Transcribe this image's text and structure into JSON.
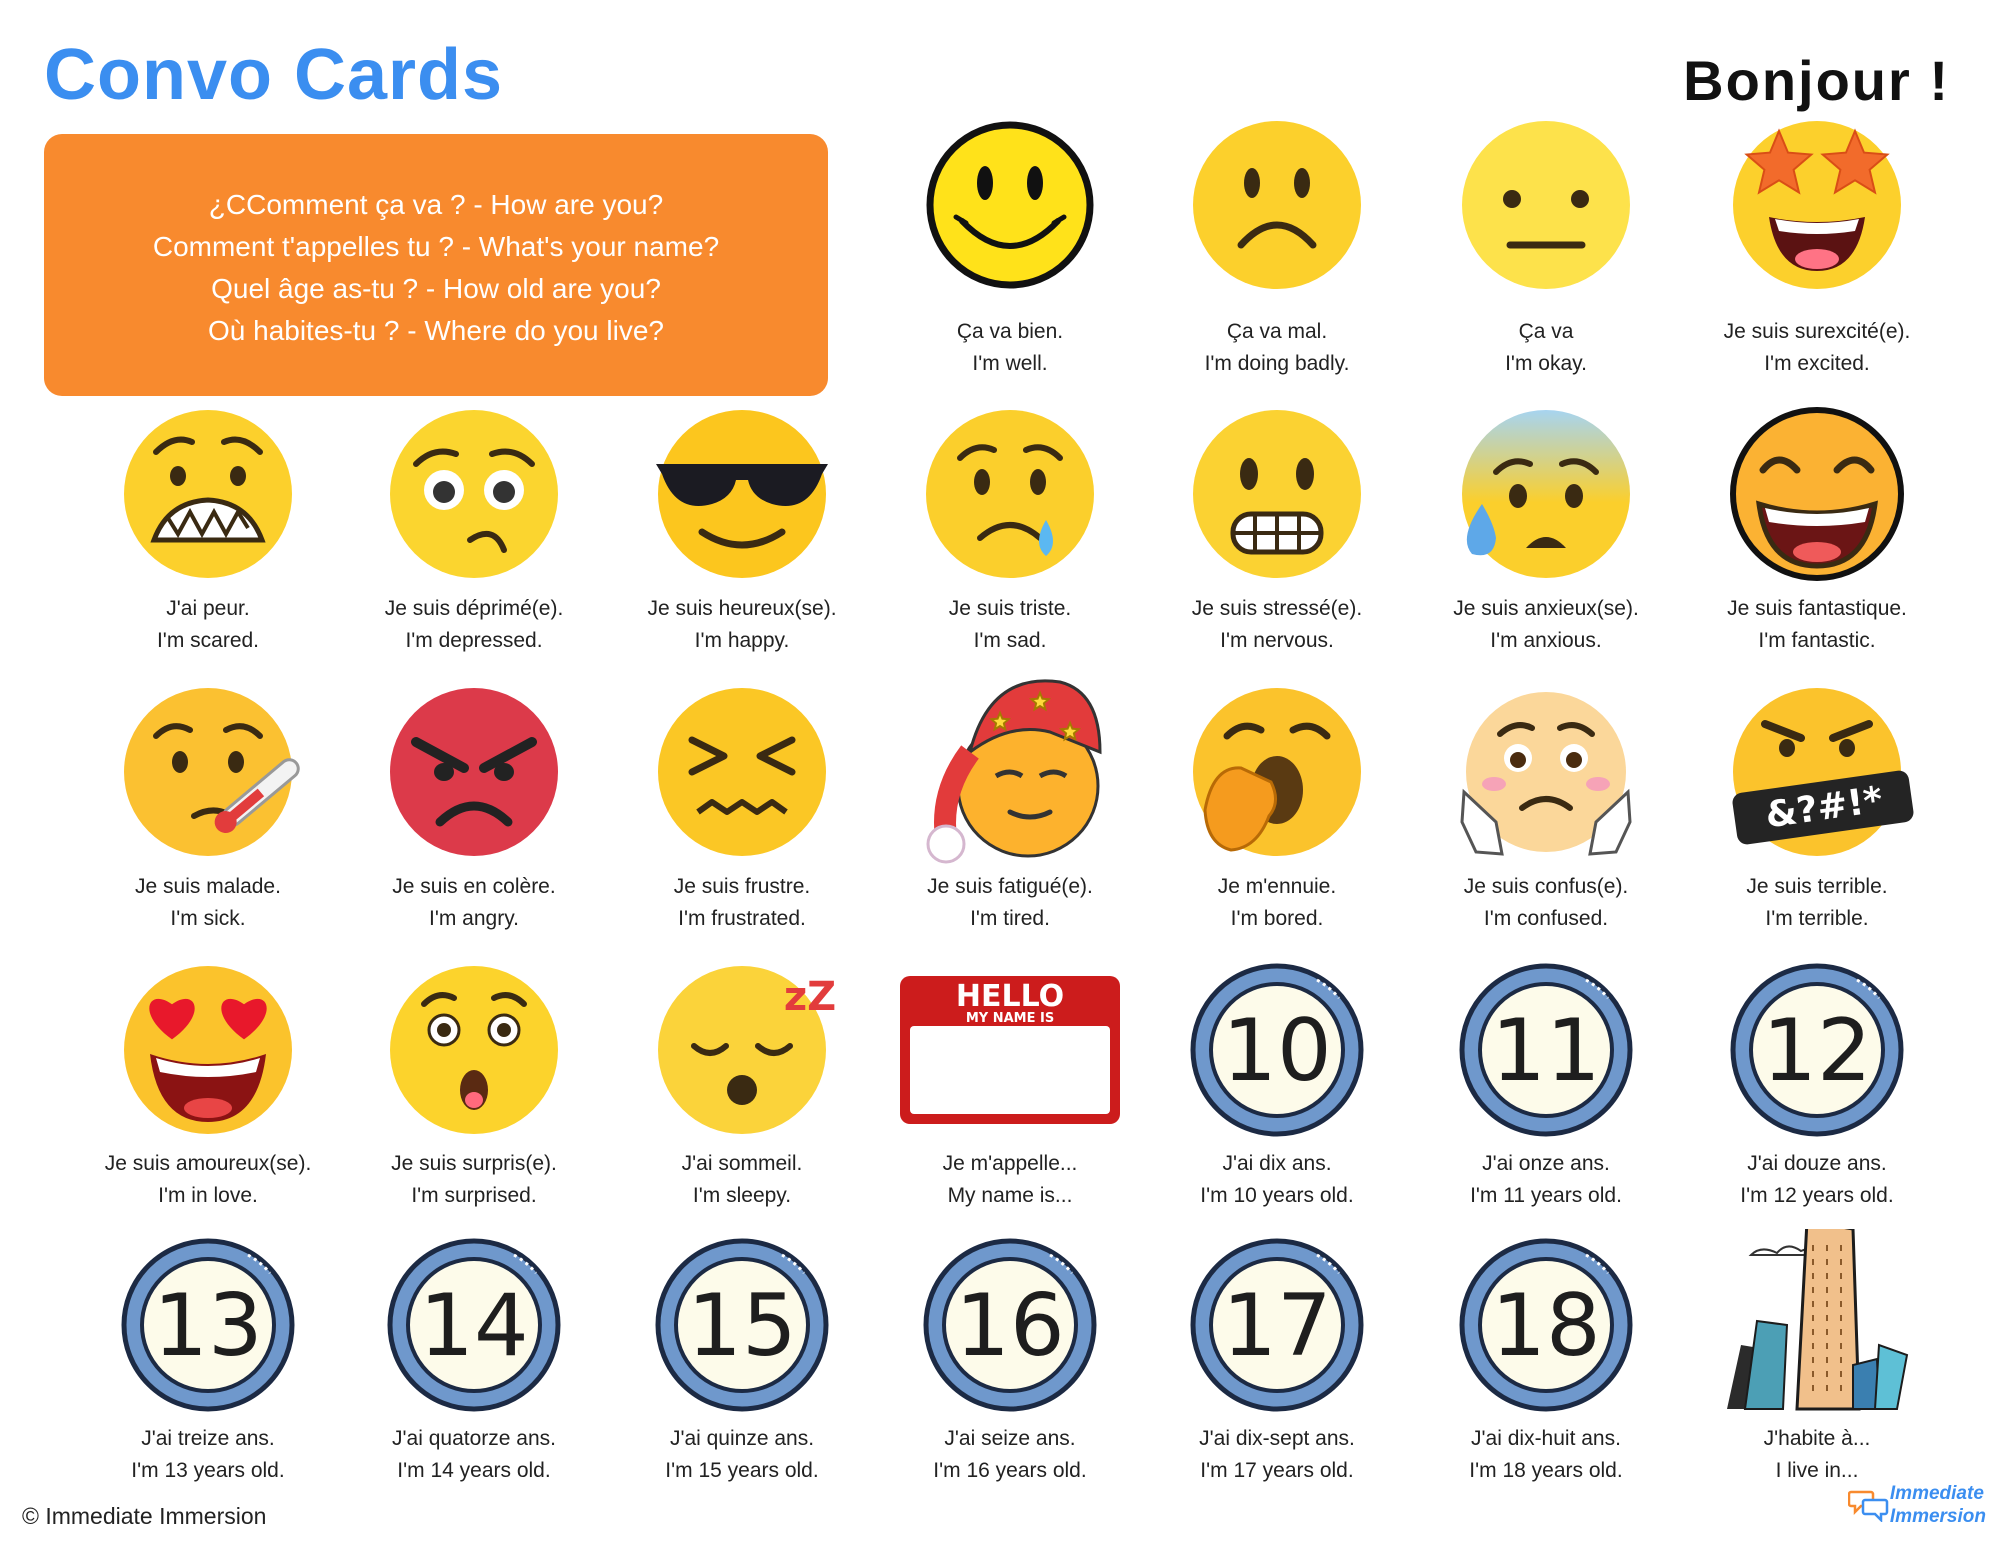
{
  "header": {
    "title": "Convo Cards",
    "greeting": "Bonjour !"
  },
  "questions": [
    "¿CComment ça va ? - How are you?",
    "Comment t'appelles tu ? - What's your name?",
    "Quel âge as-tu ? - How old are you?",
    "Où habites-tu ? - Where do you live?"
  ],
  "cards": [
    {
      "icon": "smiley-face-icon",
      "fr": "Ça va bien.",
      "en": "I'm well."
    },
    {
      "icon": "frowning-face-icon",
      "fr": "Ça va mal.",
      "en": "I'm doing badly."
    },
    {
      "icon": "neutral-face-icon",
      "fr": "Ça va",
      "en": "I'm okay."
    },
    {
      "icon": "star-eyes-face-icon",
      "fr": "Je suis surexcité(e).",
      "en": "I'm excited."
    },
    {
      "icon": "scared-face-icon",
      "fr": "J'ai peur.",
      "en": "I'm scared."
    },
    {
      "icon": "depressed-face-icon",
      "fr": "Je suis déprimé(e).",
      "en": "I'm depressed."
    },
    {
      "icon": "sunglasses-face-icon",
      "fr": "Je suis heureux(se).",
      "en": "I'm happy."
    },
    {
      "icon": "crying-face-icon",
      "fr": "Je suis triste.",
      "en": "I'm sad."
    },
    {
      "icon": "grimacing-face-icon",
      "fr": "Je suis stressé(e).",
      "en": "I'm nervous."
    },
    {
      "icon": "anxious-sweat-face-icon",
      "fr": "Je suis anxieux(se).",
      "en": "I'm anxious."
    },
    {
      "icon": "laughing-face-icon",
      "fr": "Je suis fantastique.",
      "en": "I'm fantastic."
    },
    {
      "icon": "thermometer-face-icon",
      "fr": "Je suis malade.",
      "en": "I'm sick."
    },
    {
      "icon": "angry-face-icon",
      "fr": "Je suis en colère.",
      "en": "I'm angry."
    },
    {
      "icon": "frustrated-face-icon",
      "fr": "Je suis frustre.",
      "en": "I'm frustrated."
    },
    {
      "icon": "nightcap-face-icon",
      "fr": "Je suis fatigué(e).",
      "en": "I'm tired."
    },
    {
      "icon": "yawning-face-icon",
      "fr": "Je m'ennuie.",
      "en": "I'm bored."
    },
    {
      "icon": "confused-hands-face-icon",
      "fr": "Je suis confus(e).",
      "en": "I'm confused."
    },
    {
      "icon": "cursing-face-icon",
      "fr": "Je suis terrible.",
      "en": "I'm terrible.",
      "badge": "&?#!*"
    },
    {
      "icon": "heart-eyes-face-icon",
      "fr": "Je suis amoureux(se).",
      "en": "I'm in love."
    },
    {
      "icon": "surprised-face-icon",
      "fr": "Je suis surpris(e).",
      "en": "I'm surprised."
    },
    {
      "icon": "sleeping-face-icon",
      "fr": "J'ai sommeil.",
      "en": "I'm sleepy.",
      "badge": "zZ"
    },
    {
      "icon": "name-tag-icon",
      "fr": "Je m'appelle...",
      "en": "My name is...",
      "tag_top": "HELLO",
      "tag_sub": "MY NAME IS"
    },
    {
      "icon": "number-10-icon",
      "fr": "J'ai dix ans.",
      "en": "I'm 10 years old.",
      "number": "10"
    },
    {
      "icon": "number-11-icon",
      "fr": "J'ai onze ans.",
      "en": "I'm 11 years old.",
      "number": "11"
    },
    {
      "icon": "number-12-icon",
      "fr": "J'ai douze ans.",
      "en": "I'm 12 years old.",
      "number": "12"
    },
    {
      "icon": "number-13-icon",
      "fr": "J'ai treize ans.",
      "en": "I'm 13 years old.",
      "number": "13"
    },
    {
      "icon": "number-14-icon",
      "fr": "J'ai quatorze ans.",
      "en": "I'm 14 years old.",
      "number": "14"
    },
    {
      "icon": "number-15-icon",
      "fr": "J'ai quinze ans.",
      "en": "I'm 15 years old.",
      "number": "15"
    },
    {
      "icon": "number-16-icon",
      "fr": "J'ai seize ans.",
      "en": "I'm 16 years old.",
      "number": "16"
    },
    {
      "icon": "number-17-icon",
      "fr": "J'ai dix-sept ans.",
      "en": "I'm 17 years old.",
      "number": "17"
    },
    {
      "icon": "number-18-icon",
      "fr": "J'ai dix-huit ans.",
      "en": "I'm 18 years old.",
      "number": "18"
    },
    {
      "icon": "city-buildings-icon",
      "fr": "J'habite à...",
      "en": "I live in..."
    }
  ],
  "footer": {
    "copyright": "© Immediate Immersion",
    "logo_line1": "Immediate",
    "logo_line2": "Immersion"
  },
  "colors": {
    "title": "#3b8ef0",
    "question_box": "#f88a2e",
    "face": "#fcd02c",
    "angry_face": "#dc3a4a",
    "name_tag": "#cc1c1c",
    "number_ring": "#6f98cc",
    "number_fill": "#fdfbea"
  }
}
